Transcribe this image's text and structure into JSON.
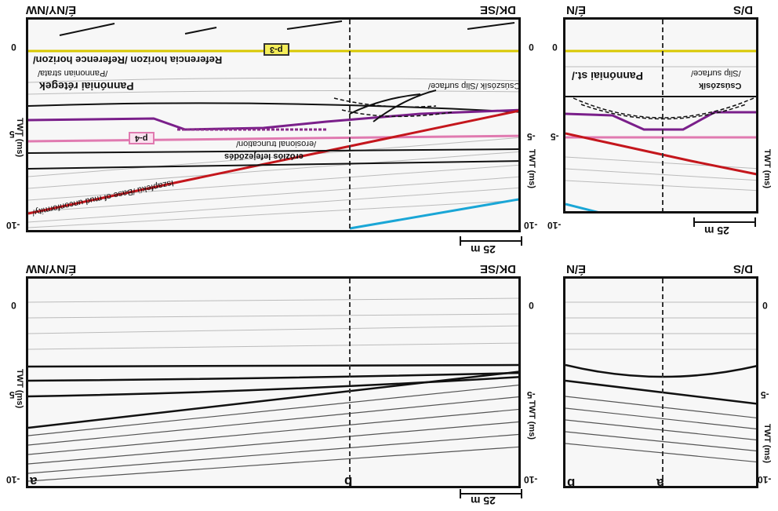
{
  "panels": {
    "a": {
      "left": "É/NY/NW",
      "right": "DK/SE",
      "scale": "25 m",
      "ticks_left": [
        "0",
        "-5",
        "-10"
      ],
      "ticks_right": [
        "0",
        "-5",
        "-10"
      ],
      "axis_left": "TWT (ms)",
      "axis_right": "TWT (ms)",
      "layers": {
        "ref": "Referencia horizon /Reference horizon/",
        "pann_hu": "Pannóniai rétegek",
        "pann_en": "/Pannonian strata/",
        "slip": "Csúszósík /Slip surface/",
        "erosion_hu": "eróziós lefejeződés",
        "erosion_en": "/erosional truncation/",
        "base": "Iszapfekü /Base of mud unconformity/"
      },
      "tags": [
        "p-3",
        "p-4"
      ]
    },
    "b": {
      "left": "É/N",
      "right": "D/S",
      "scale": "25 m",
      "ticks_right": [
        "0",
        "-5",
        "-10"
      ],
      "axis_right": "TWT (ms)",
      "layers": {
        "pann": "Pannóniai st./",
        "slip": "Csúszósík",
        "slip2": "/Slip surface/"
      }
    },
    "c": {
      "left": "É/NY/NW",
      "right": "DK/SE",
      "scale": "25 m",
      "ticks_left": [
        "0",
        "-5",
        "-10"
      ],
      "ticks_right": [
        "0",
        "-5",
        "-10"
      ],
      "axis_left": "TWT (ms)",
      "axis_right": "TWT (ms)",
      "corner_a": "a",
      "corner_b": "b"
    },
    "d": {
      "left": "É/N",
      "right": "D/S",
      "ticks_right": [
        "0",
        "-5",
        "-10"
      ],
      "axis_right": "TWT (ms)",
      "corner_b": "b",
      "corner_a": "a"
    }
  }
}
